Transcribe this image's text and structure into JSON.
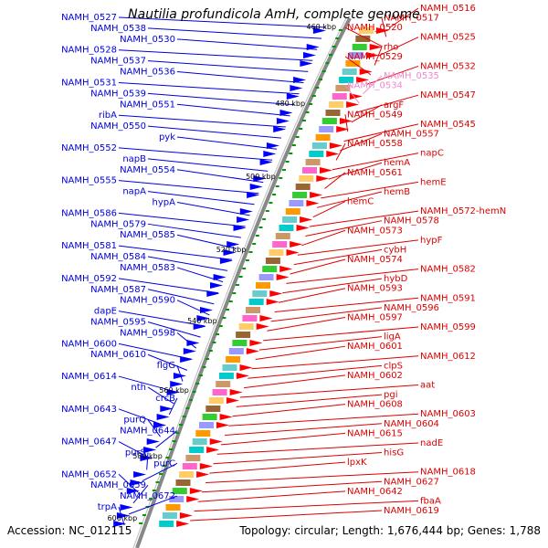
{
  "title": "Nautilia profundicola AmH, complete genome",
  "footer": {
    "accession": "Accession: NC_012115",
    "topology": "Topology: circular; Length: 1,676,444 bp; Genes: 1,788"
  },
  "colors": {
    "left_labels": "#0000dd",
    "right_labels": "#dd0000",
    "pink_labels": "#ee88cc",
    "forward_genes": "#0000ff",
    "reverse_genes": "#ff0000",
    "tick_marks": "#009900",
    "backbone": "#888888"
  },
  "ticks": [
    "460 kbp",
    "480 kbp",
    "500 kbp",
    "520 kbp",
    "540 kbp",
    "560 kbp",
    "580 kbp",
    "600 kbp"
  ],
  "left_labels": [
    "NAMH_0527",
    "NAMH_0538",
    "NAMH_0530",
    "NAMH_0528",
    "NAMH_0537",
    "NAMH_0536",
    "NAMH_0531",
    "NAMH_0539",
    "NAMH_0551",
    "ribA",
    "NAMH_0550",
    "pyk",
    "NAMH_0552",
    "napB",
    "NAMH_0554",
    "NAMH_0555",
    "napA",
    "hypA",
    "NAMH_0586",
    "NAMH_0579",
    "NAMH_0585",
    "NAMH_0581",
    "NAMH_0584",
    "NAMH_0583",
    "NAMH_0592",
    "NAMH_0587",
    "NAMH_0590",
    "dapE",
    "NAMH_0595",
    "NAMH_0598",
    "NAMH_0600",
    "NAMH_0610",
    "flgG",
    "NAMH_0614",
    "nth",
    "crcB",
    "NAMH_0643",
    "purQ",
    "NAMH_0644",
    "NAMH_0647",
    "purS",
    "purC",
    "NAMH_0652",
    "NAMH_0659",
    "NAMH_0672",
    "trpA"
  ],
  "right_labels": [
    "NAMH_0516",
    "NAMH_0517",
    "NAMH_0520",
    "NAMH_0525",
    "rho",
    "NAMH_0529",
    "NAMH_0532",
    "NAMH_0535",
    "NAMH_0534",
    "NAMH_0547",
    "argF",
    "NAMH_0549",
    "NAMH_0545",
    "NAMH_0557",
    "NAMH_0558",
    "napC",
    "hemA",
    "NAMH_0561",
    "hemE",
    "hemB",
    "hemC",
    "NAMH_0572-hemN",
    "NAMH_0578",
    "NAMH_0573",
    "hypF",
    "cybH",
    "NAMH_0574",
    "NAMH_0582",
    "hybD",
    "NAMH_0593",
    "NAMH_0591",
    "NAMH_0596",
    "NAMH_0597",
    "NAMH_0599",
    "ligA",
    "NAMH_0601",
    "NAMH_0612",
    "clpS",
    "NAMH_0602",
    "aat",
    "pgi",
    "NAMH_0608",
    "NAMH_0603",
    "NAMH_0604",
    "NAMH_0615",
    "nadE",
    "hisG",
    "lpxK",
    "NAMH_0618",
    "NAMH_0627",
    "NAMH_0642",
    "fbaA",
    "NAMH_0619"
  ]
}
